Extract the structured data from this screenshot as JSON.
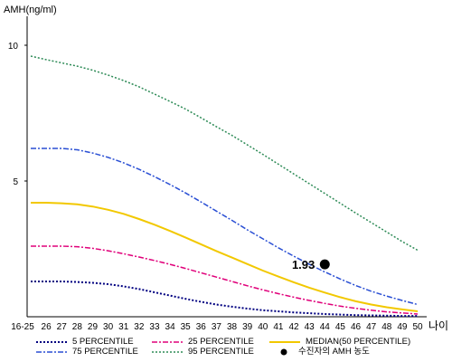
{
  "chart_data": {
    "type": "line",
    "ylabel": "AMH(ng/ml)",
    "xlabel": "나이",
    "ylim": [
      0,
      11
    ],
    "yticks": [
      5,
      10
    ],
    "x_categories": [
      "16-25",
      "26",
      "27",
      "28",
      "29",
      "30",
      "31",
      "32",
      "33",
      "34",
      "35",
      "36",
      "37",
      "38",
      "39",
      "40",
      "41",
      "42",
      "43",
      "44",
      "45",
      "46",
      "47",
      "48",
      "49",
      "50"
    ],
    "series": [
      {
        "name": "5 PERCENTILE",
        "color": "#000080",
        "dash": "2,2",
        "width": 2,
        "values": [
          1.3,
          1.3,
          1.3,
          1.28,
          1.25,
          1.2,
          1.12,
          1.02,
          0.9,
          0.78,
          0.66,
          0.55,
          0.45,
          0.37,
          0.3,
          0.24,
          0.2,
          0.16,
          0.13,
          0.1,
          0.08,
          0.06,
          0.05,
          0.04,
          0.03,
          0.03
        ]
      },
      {
        "name": "25 PERCENTILE",
        "color": "#e0007a",
        "dash": "6,2,2,2",
        "width": 1.5,
        "values": [
          2.6,
          2.6,
          2.6,
          2.58,
          2.52,
          2.43,
          2.32,
          2.2,
          2.07,
          1.93,
          1.78,
          1.62,
          1.46,
          1.3,
          1.14,
          0.99,
          0.85,
          0.72,
          0.6,
          0.49,
          0.39,
          0.31,
          0.24,
          0.18,
          0.14,
          0.1
        ]
      },
      {
        "name": "MEDIAN(50 PERCENTILE)",
        "color": "#f2c800",
        "dash": "",
        "width": 2,
        "values": [
          4.2,
          4.2,
          4.18,
          4.14,
          4.06,
          3.94,
          3.79,
          3.6,
          3.39,
          3.16,
          2.92,
          2.67,
          2.42,
          2.18,
          1.94,
          1.7,
          1.48,
          1.27,
          1.07,
          0.89,
          0.72,
          0.57,
          0.45,
          0.35,
          0.27,
          0.2
        ]
      },
      {
        "name": "75 PERCENTILE",
        "color": "#2a4fd4",
        "dash": "6,2,2,2",
        "width": 1.5,
        "values": [
          6.2,
          6.2,
          6.2,
          6.15,
          6.03,
          5.87,
          5.67,
          5.43,
          5.16,
          4.87,
          4.56,
          4.23,
          3.89,
          3.55,
          3.2,
          2.87,
          2.54,
          2.23,
          1.93,
          1.65,
          1.39,
          1.15,
          0.94,
          0.76,
          0.6,
          0.45
        ]
      },
      {
        "name": "95 PERCENTILE",
        "color": "#2e8b57",
        "dash": "2,2",
        "width": 1.5,
        "values": [
          9.6,
          9.47,
          9.35,
          9.23,
          9.08,
          8.9,
          8.7,
          8.47,
          8.2,
          7.93,
          7.65,
          7.33,
          7.0,
          6.68,
          6.33,
          5.98,
          5.62,
          5.26,
          4.9,
          4.54,
          4.18,
          3.82,
          3.47,
          3.12,
          2.77,
          2.45
        ]
      }
    ],
    "marker": {
      "name": "수진자의 AMH 농도",
      "x": "44",
      "y": 1.93,
      "label": "1.93",
      "color": "#000000"
    },
    "grid": false,
    "legend_position": "bottom"
  }
}
